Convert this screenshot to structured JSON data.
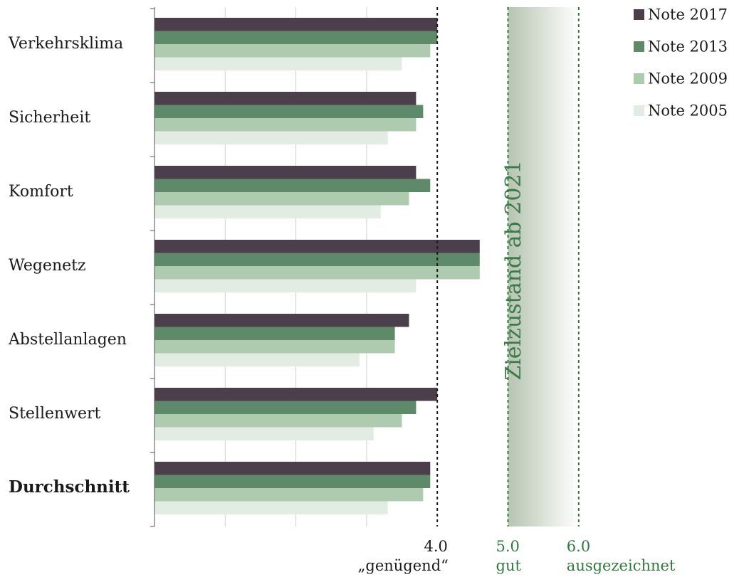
{
  "chart_data": {
    "type": "bar",
    "orientation": "horizontal",
    "categories": [
      "Verkehrsklima",
      "Sicherheit",
      "Komfort",
      "Wegenetz",
      "Abstellanlagen",
      "Stellenwert",
      "Durchschnitt"
    ],
    "emphasized_category": "Durchschnitt",
    "series": [
      {
        "name": "Note 2017",
        "color": "#4a3f4a",
        "values": [
          4.0,
          3.7,
          3.7,
          4.6,
          3.6,
          4.0,
          3.9
        ]
      },
      {
        "name": "Note 2013",
        "color": "#5f8a6a",
        "values": [
          4.0,
          3.8,
          3.9,
          4.6,
          3.4,
          3.7,
          3.9
        ]
      },
      {
        "name": "Note 2009",
        "color": "#aecbb0",
        "values": [
          3.9,
          3.7,
          3.6,
          4.6,
          3.4,
          3.5,
          3.8
        ]
      },
      {
        "name": "Note 2005",
        "color": "#e3ece3",
        "values": [
          3.5,
          3.3,
          3.2,
          3.7,
          2.9,
          3.1,
          3.3
        ]
      }
    ],
    "xlim": [
      0,
      6
    ],
    "grid": true,
    "legend": "top-right",
    "reference_lines": [
      {
        "value": 4.0,
        "label": "4.0",
        "sublabel": "„genügend“",
        "color": "#1a1a1a"
      },
      {
        "value": 5.0,
        "label": "5.0",
        "sublabel": "gut",
        "color": "#2f7a3c"
      },
      {
        "value": 6.0,
        "label": "6.0",
        "sublabel": "ausgezeichnet",
        "color": "#2f7a3c"
      }
    ],
    "target_zone": {
      "from": 5.0,
      "to": 6.0,
      "label": "Zielzustand ab 2021",
      "color": "#3d7a4a"
    }
  }
}
